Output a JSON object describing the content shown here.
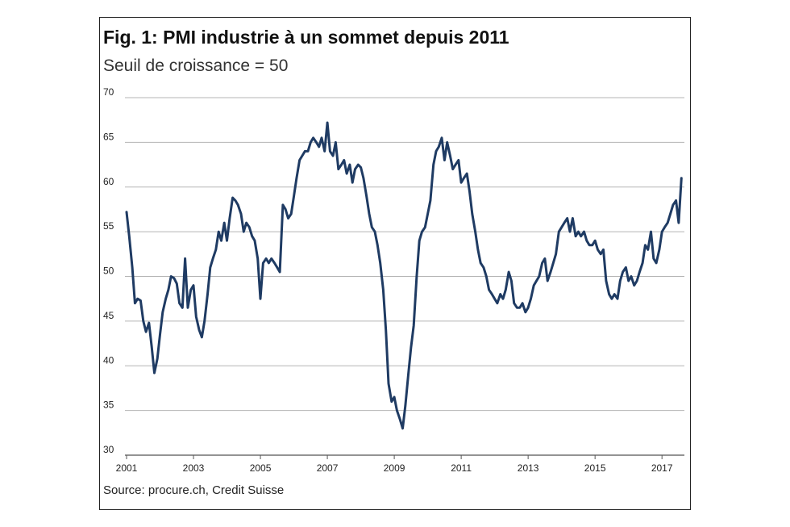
{
  "chart_data": {
    "type": "line",
    "title": "Fig. 1: PMI industrie à un sommet depuis 2011",
    "subtitle": "Seuil de croissance = 50",
    "source": "Source: procure.ch, Credit Suisse",
    "xlabel": "",
    "ylabel": "",
    "ylim": [
      30,
      70
    ],
    "xlim": [
      2001.0,
      2017.67
    ],
    "y_ticks": [
      "30",
      "35",
      "40",
      "45",
      "50",
      "55",
      "60",
      "65",
      "70"
    ],
    "x_ticks": [
      "2001",
      "2003",
      "2005",
      "2007",
      "2009",
      "2011",
      "2013",
      "2015",
      "2017"
    ],
    "grid": true,
    "series_color": "#1f3b63",
    "series": [
      {
        "x": [
          2001.0,
          2001.08,
          2001.17,
          2001.25,
          2001.33,
          2001.42,
          2001.5,
          2001.58,
          2001.67,
          2001.75,
          2001.83,
          2001.92,
          2002.0,
          2002.08,
          2002.17,
          2002.25,
          2002.33,
          2002.42,
          2002.5,
          2002.58,
          2002.67,
          2002.75,
          2002.83,
          2002.92,
          2003.0,
          2003.08,
          2003.17,
          2003.25,
          2003.33,
          2003.42,
          2003.5,
          2003.58,
          2003.67,
          2003.75,
          2003.83,
          2003.92,
          2004.0,
          2004.08,
          2004.17,
          2004.25,
          2004.33,
          2004.42,
          2004.5,
          2004.58,
          2004.67,
          2004.75,
          2004.83,
          2004.92,
          2005.0,
          2005.08,
          2005.17,
          2005.25,
          2005.33,
          2005.42,
          2005.5,
          2005.58,
          2005.67,
          2005.75,
          2005.83,
          2005.92,
          2006.0,
          2006.08,
          2006.17,
          2006.25,
          2006.33,
          2006.42,
          2006.5,
          2006.58,
          2006.67,
          2006.75,
          2006.83,
          2006.92,
          2007.0,
          2007.08,
          2007.17,
          2007.25,
          2007.33,
          2007.42,
          2007.5,
          2007.58,
          2007.67,
          2007.75,
          2007.83,
          2007.92,
          2008.0,
          2008.08,
          2008.17,
          2008.25,
          2008.33,
          2008.42,
          2008.5,
          2008.58,
          2008.67,
          2008.75,
          2008.83,
          2008.92,
          2009.0,
          2009.08,
          2009.17,
          2009.25,
          2009.33,
          2009.42,
          2009.5,
          2009.58,
          2009.67,
          2009.75,
          2009.83,
          2009.92,
          2010.0,
          2010.08,
          2010.17,
          2010.25,
          2010.33,
          2010.42,
          2010.5,
          2010.58,
          2010.67,
          2010.75,
          2010.83,
          2010.92,
          2011.0,
          2011.08,
          2011.17,
          2011.25,
          2011.33,
          2011.42,
          2011.5,
          2011.58,
          2011.67,
          2011.75,
          2011.83,
          2011.92,
          2012.0,
          2012.08,
          2012.17,
          2012.25,
          2012.33,
          2012.42,
          2012.5,
          2012.58,
          2012.67,
          2012.75,
          2012.83,
          2012.92,
          2013.0,
          2013.08,
          2013.17,
          2013.25,
          2013.33,
          2013.42,
          2013.5,
          2013.58,
          2013.67,
          2013.75,
          2013.83,
          2013.92,
          2014.0,
          2014.08,
          2014.17,
          2014.25,
          2014.33,
          2014.42,
          2014.5,
          2014.58,
          2014.67,
          2014.75,
          2014.83,
          2014.92,
          2015.0,
          2015.08,
          2015.17,
          2015.25,
          2015.33,
          2015.42,
          2015.5,
          2015.58,
          2015.67,
          2015.75,
          2015.83,
          2015.92,
          2016.0,
          2016.08,
          2016.17,
          2016.25,
          2016.33,
          2016.42,
          2016.5,
          2016.58,
          2016.67,
          2016.75,
          2016.83,
          2016.92,
          2017.0,
          2017.08,
          2017.17,
          2017.25,
          2017.33,
          2017.42,
          2017.5,
          2017.58
        ],
        "values": [
          57.2,
          54.5,
          51.0,
          47.0,
          47.5,
          47.3,
          45.0,
          43.8,
          44.8,
          42.2,
          39.2,
          40.8,
          43.5,
          46.0,
          47.5,
          48.5,
          50.0,
          49.8,
          49.2,
          47.0,
          46.5,
          52.0,
          46.5,
          48.5,
          49.0,
          45.5,
          44.0,
          43.2,
          45.0,
          48.0,
          51.0,
          52.0,
          53.0,
          55.0,
          54.0,
          56.0,
          54.0,
          56.5,
          58.8,
          58.5,
          58.0,
          57.0,
          55.0,
          56.0,
          55.5,
          54.5,
          54.0,
          52.0,
          47.5,
          51.5,
          52.0,
          51.5,
          52.0,
          51.5,
          51.0,
          50.5,
          58.0,
          57.5,
          56.5,
          57.0,
          59.0,
          61.0,
          63.0,
          63.5,
          64.0,
          64.0,
          65.0,
          65.5,
          65.0,
          64.5,
          65.5,
          64.0,
          67.2,
          64.0,
          63.5,
          65.0,
          62.0,
          62.5,
          63.0,
          61.5,
          62.5,
          60.5,
          62.0,
          62.5,
          62.2,
          61.0,
          59.0,
          57.0,
          55.5,
          55.0,
          53.5,
          51.5,
          48.5,
          44.0,
          38.0,
          36.0,
          36.5,
          35.0,
          34.0,
          33.0,
          35.5,
          39.0,
          42.0,
          44.5,
          50.0,
          54.0,
          55.0,
          55.5,
          57.0,
          58.5,
          62.5,
          64.0,
          64.5,
          65.5,
          63.0,
          65.0,
          63.5,
          62.0,
          62.5,
          63.0,
          60.5,
          61.0,
          61.5,
          59.5,
          57.0,
          55.0,
          53.0,
          51.5,
          51.0,
          50.0,
          48.5,
          48.0,
          47.5,
          47.0,
          48.0,
          47.5,
          48.5,
          50.5,
          49.5,
          47.0,
          46.5,
          46.5,
          47.0,
          46.0,
          46.5,
          47.5,
          49.0,
          49.5,
          50.0,
          51.5,
          52.0,
          49.5,
          50.5,
          51.5,
          52.5,
          55.0,
          55.5,
          56.0,
          56.5,
          55.0,
          56.5,
          54.5,
          55.0,
          54.5,
          55.0,
          54.0,
          53.5,
          53.5,
          54.0,
          53.0,
          52.5,
          53.0,
          49.5,
          48.0,
          47.5,
          48.0,
          47.5,
          49.5,
          50.5,
          51.0,
          49.5,
          50.0,
          49.0,
          49.5,
          50.5,
          51.5,
          53.5,
          53.0,
          55.0,
          52.0,
          51.5,
          53.0,
          55.0,
          55.5,
          56.0,
          57.0,
          58.0,
          58.5,
          56.0,
          61.0
        ]
      }
    ]
  }
}
